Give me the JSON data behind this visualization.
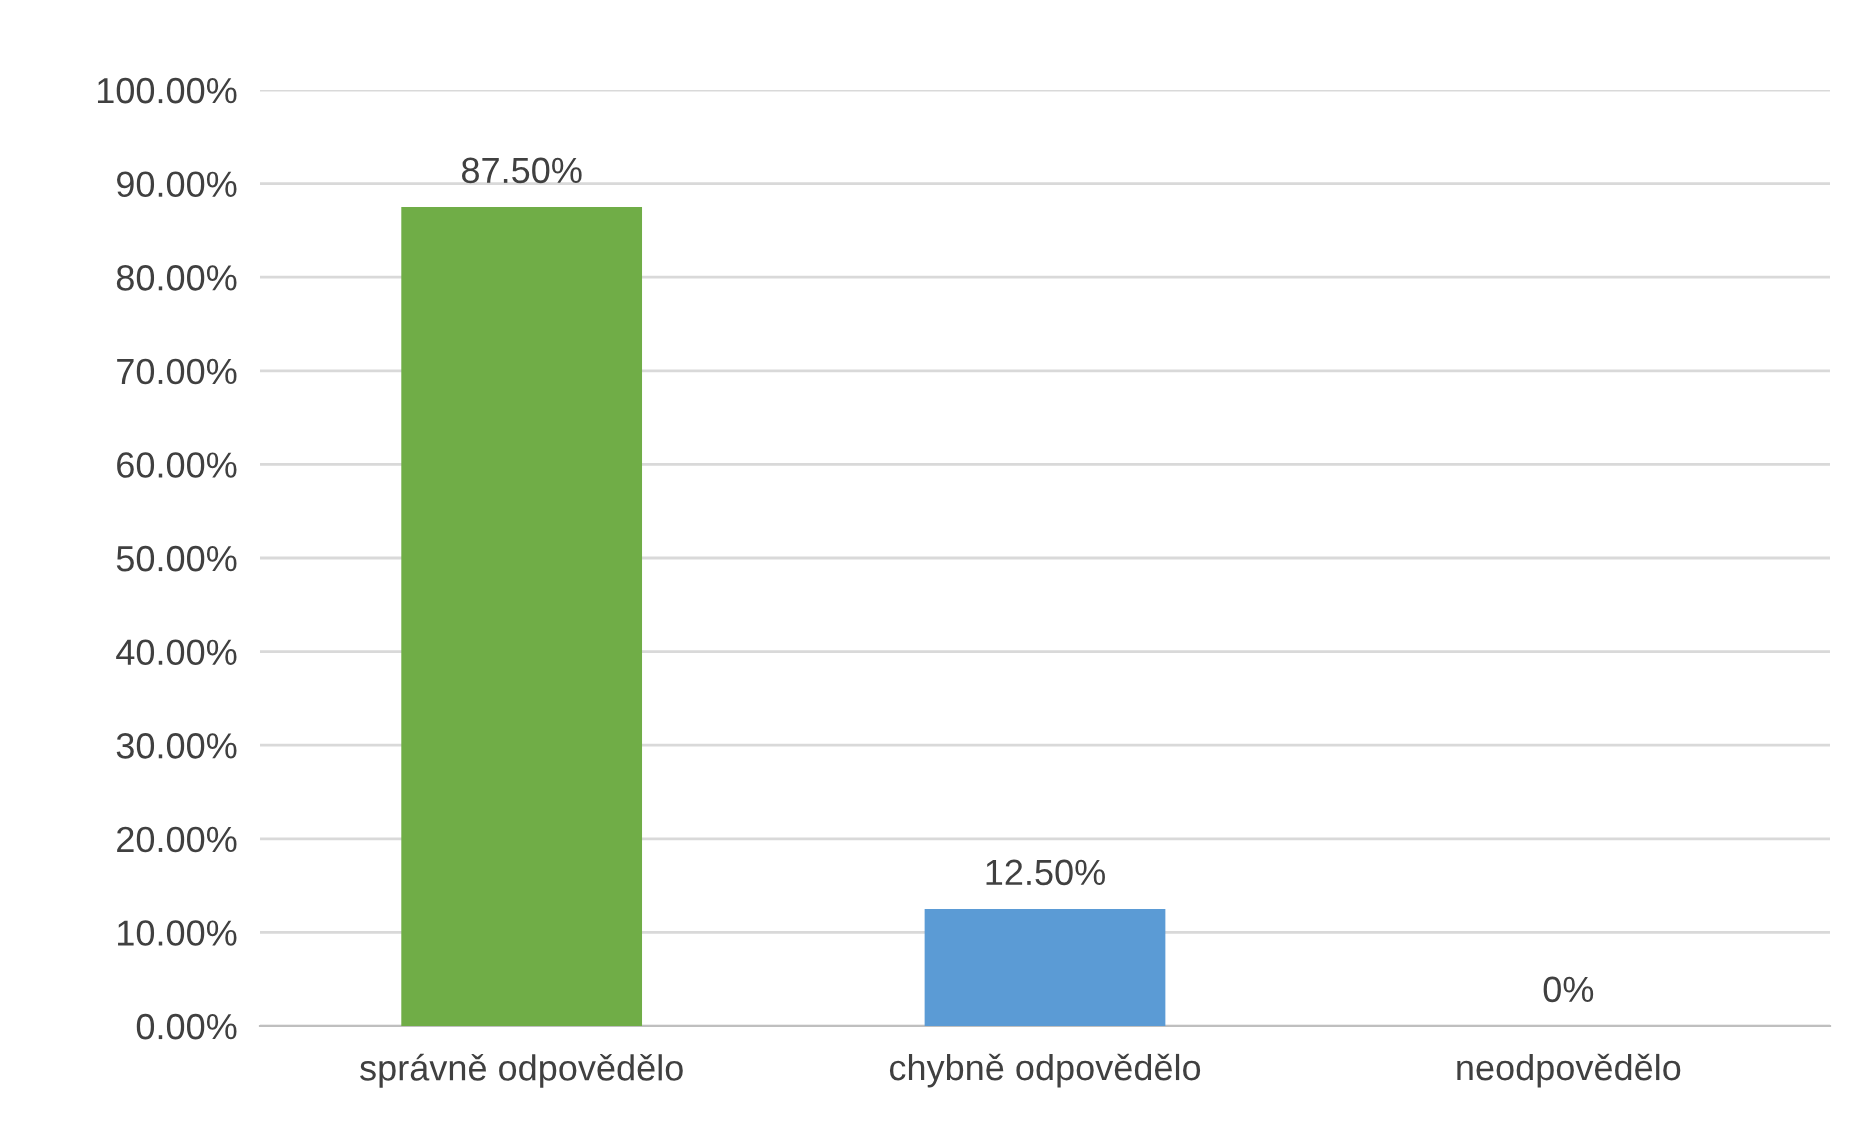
{
  "chart_data": {
    "type": "bar",
    "categories": [
      "správně odpovědělo",
      "chybně odpovědělo",
      "neodpovědělo"
    ],
    "values": [
      87.5,
      12.5,
      0
    ],
    "colors": [
      "#70ad47",
      "#5b9bd5",
      "#a5a5a5"
    ],
    "value_labels": [
      "87.50%",
      "12.50%",
      "0%"
    ],
    "ylim": [
      0,
      100
    ],
    "yticks": [
      {
        "value": 0,
        "label": "0.00%"
      },
      {
        "value": 10,
        "label": "10.00%"
      },
      {
        "value": 20,
        "label": "20.00%"
      },
      {
        "value": 30,
        "label": "30.00%"
      },
      {
        "value": 40,
        "label": "40.00%"
      },
      {
        "value": 50,
        "label": "50.00%"
      },
      {
        "value": 60,
        "label": "60.00%"
      },
      {
        "value": 70,
        "label": "70.00%"
      },
      {
        "value": 80,
        "label": "80.00%"
      },
      {
        "value": 90,
        "label": "90.00%"
      },
      {
        "value": 100,
        "label": "100.00%"
      }
    ],
    "grid": "y",
    "legend": false
  }
}
